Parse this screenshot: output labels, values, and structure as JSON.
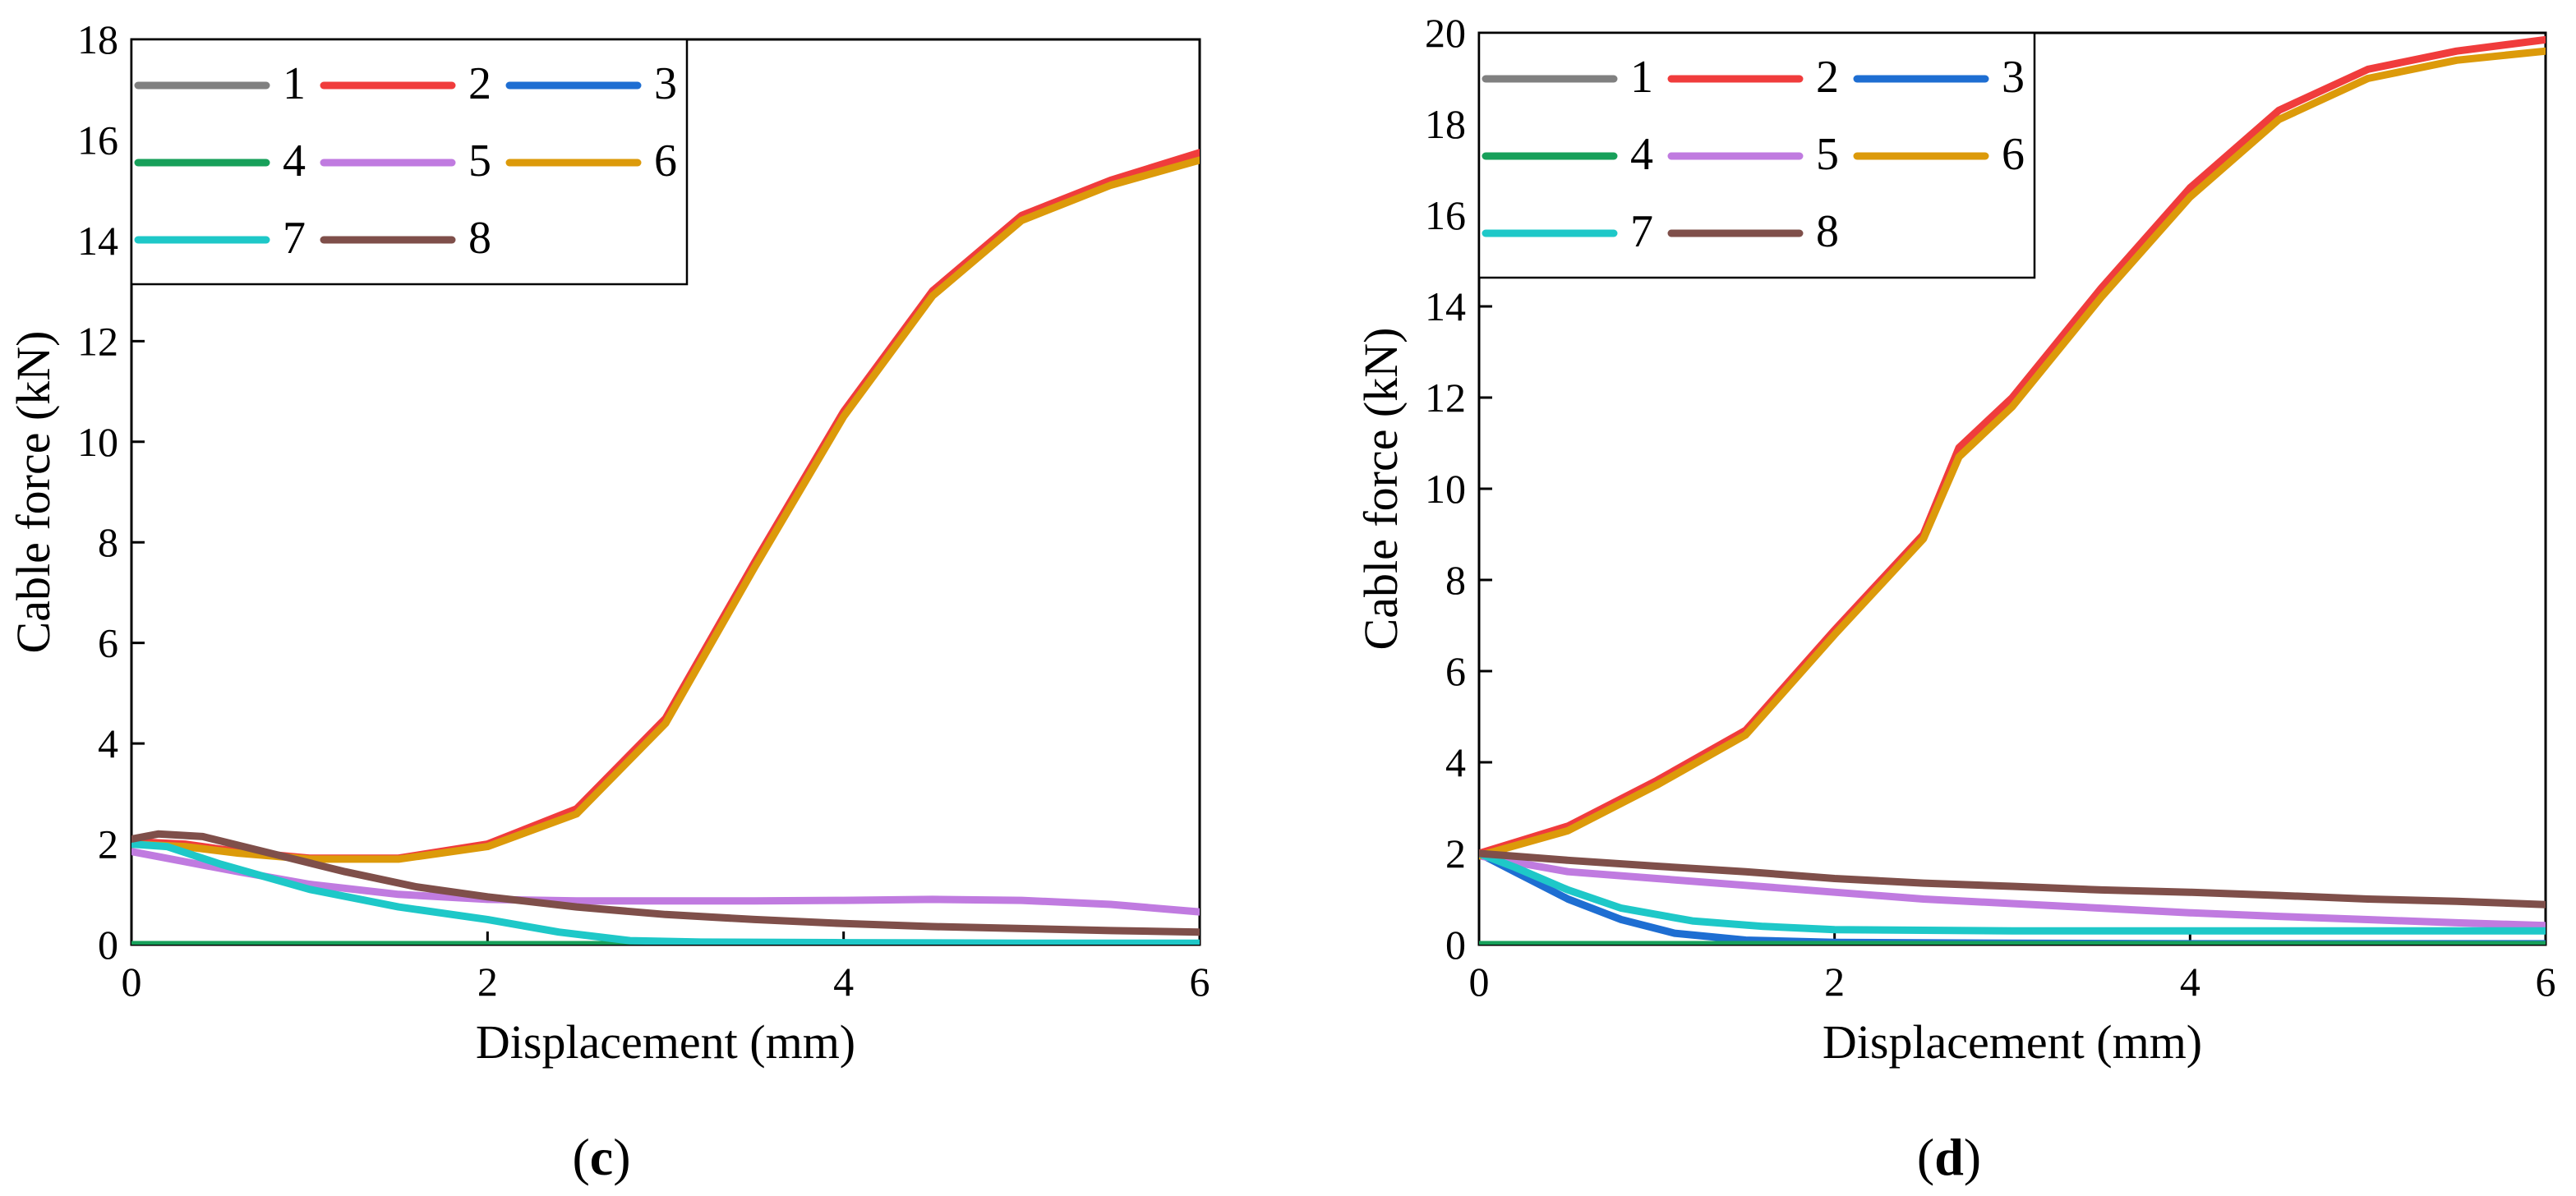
{
  "figure": {
    "panels": [
      {
        "caption_open": "(",
        "caption_letter": "c",
        "caption_close": ")"
      },
      {
        "caption_open": "(",
        "caption_letter": "d",
        "caption_close": ")"
      }
    ]
  },
  "chart_data": [
    {
      "type": "line",
      "panel": "(c)",
      "title": "",
      "xlabel": "Displacement (mm)",
      "ylabel": "Cable force (kN)",
      "xlim": [
        0,
        6
      ],
      "ylim": [
        0,
        18
      ],
      "xticks": [
        0,
        2,
        4,
        6
      ],
      "yticks": [
        0,
        2,
        4,
        6,
        8,
        10,
        12,
        14,
        16,
        18
      ],
      "legend_position": "top-left",
      "series": [
        {
          "name": "1",
          "color": "#808080",
          "x": [
            0,
            6
          ],
          "y": [
            0,
            0
          ]
        },
        {
          "name": "2",
          "color": "#f03c3c",
          "x": [
            0,
            0.3,
            0.6,
            1.0,
            1.5,
            2.0,
            2.5,
            3.0,
            3.5,
            4.0,
            4.5,
            5.0,
            5.5,
            6.0
          ],
          "y": [
            2.05,
            2.0,
            1.85,
            1.72,
            1.72,
            2.0,
            2.7,
            4.5,
            7.6,
            10.6,
            13.0,
            14.5,
            15.2,
            15.75
          ]
        },
        {
          "name": "3",
          "color": "#1e6ed2",
          "x": [
            0,
            6
          ],
          "y": [
            0,
            0
          ]
        },
        {
          "name": "4",
          "color": "#17a05a",
          "x": [
            0,
            6
          ],
          "y": [
            0,
            0
          ]
        },
        {
          "name": "5",
          "color": "#c07be0",
          "x": [
            0,
            0.3,
            0.6,
            1.0,
            1.5,
            2.0,
            2.5,
            3.0,
            3.5,
            4.0,
            4.5,
            5.0,
            5.5,
            6.0
          ],
          "y": [
            1.85,
            1.65,
            1.45,
            1.2,
            1.0,
            0.9,
            0.87,
            0.87,
            0.87,
            0.88,
            0.9,
            0.88,
            0.8,
            0.65
          ]
        },
        {
          "name": "6",
          "color": "#dc9a0a",
          "x": [
            0,
            0.3,
            0.6,
            1.0,
            1.5,
            2.0,
            2.5,
            3.0,
            3.5,
            4.0,
            4.5,
            5.0,
            5.5,
            6.0
          ],
          "y": [
            2.0,
            1.95,
            1.82,
            1.7,
            1.7,
            1.95,
            2.6,
            4.4,
            7.5,
            10.5,
            12.9,
            14.4,
            15.1,
            15.6
          ]
        },
        {
          "name": "7",
          "color": "#1ec8c8",
          "x": [
            0,
            0.2,
            0.5,
            1.0,
            1.5,
            2.0,
            2.4,
            2.8,
            3.2,
            4.0,
            5.0,
            6.0
          ],
          "y": [
            2.0,
            1.95,
            1.6,
            1.1,
            0.75,
            0.5,
            0.25,
            0.08,
            0.05,
            0.04,
            0.03,
            0.03
          ]
        },
        {
          "name": "8",
          "color": "#7f4f4a",
          "x": [
            0,
            0.15,
            0.4,
            0.8,
            1.2,
            1.6,
            2.0,
            2.5,
            3.0,
            3.5,
            4.0,
            4.5,
            5.0,
            5.5,
            6.0
          ],
          "y": [
            2.1,
            2.2,
            2.15,
            1.8,
            1.45,
            1.15,
            0.95,
            0.75,
            0.6,
            0.5,
            0.42,
            0.36,
            0.32,
            0.28,
            0.25
          ]
        }
      ]
    },
    {
      "type": "line",
      "panel": "(d)",
      "title": "",
      "xlabel": "Displacement (mm)",
      "ylabel": "Cable force (kN)",
      "xlim": [
        0,
        6
      ],
      "ylim": [
        0,
        20
      ],
      "xticks": [
        0,
        2,
        4,
        6
      ],
      "yticks": [
        0,
        2,
        4,
        6,
        8,
        10,
        12,
        14,
        16,
        18,
        20
      ],
      "legend_position": "top-left",
      "series": [
        {
          "name": "1",
          "color": "#808080",
          "x": [
            0,
            6
          ],
          "y": [
            0,
            0
          ]
        },
        {
          "name": "2",
          "color": "#f03c3c",
          "x": [
            0,
            0.5,
            1.0,
            1.5,
            2.0,
            2.5,
            2.7,
            3.0,
            3.5,
            4.0,
            4.5,
            5.0,
            5.5,
            6.0
          ],
          "y": [
            2.0,
            2.6,
            3.6,
            4.7,
            6.9,
            9.0,
            10.9,
            12.0,
            14.4,
            16.6,
            18.3,
            19.2,
            19.6,
            19.85
          ]
        },
        {
          "name": "3",
          "color": "#1e6ed2",
          "x": [
            0,
            0.2,
            0.5,
            0.8,
            1.1,
            1.5,
            2.0,
            3.0,
            4.0,
            5.0,
            6.0
          ],
          "y": [
            2.0,
            1.6,
            1.0,
            0.55,
            0.25,
            0.1,
            0.05,
            0.03,
            0.02,
            0.02,
            0.02
          ]
        },
        {
          "name": "4",
          "color": "#17a05a",
          "x": [
            0,
            6
          ],
          "y": [
            0,
            0
          ]
        },
        {
          "name": "5",
          "color": "#c07be0",
          "x": [
            0,
            0.5,
            1.0,
            1.5,
            2.0,
            2.5,
            3.0,
            3.5,
            4.0,
            4.5,
            5.0,
            5.5,
            6.0
          ],
          "y": [
            1.95,
            1.6,
            1.45,
            1.3,
            1.15,
            1.0,
            0.9,
            0.8,
            0.7,
            0.62,
            0.55,
            0.48,
            0.42
          ]
        },
        {
          "name": "6",
          "color": "#dc9a0a",
          "x": [
            0,
            0.5,
            1.0,
            1.5,
            2.0,
            2.5,
            2.7,
            3.0,
            3.5,
            4.0,
            4.5,
            5.0,
            5.5,
            6.0
          ],
          "y": [
            1.95,
            2.5,
            3.5,
            4.6,
            6.8,
            8.9,
            10.7,
            11.8,
            14.2,
            16.4,
            18.1,
            19.0,
            19.4,
            19.6
          ]
        },
        {
          "name": "7",
          "color": "#1ec8c8",
          "x": [
            0,
            0.2,
            0.5,
            0.8,
            1.2,
            1.6,
            2.0,
            3.0,
            4.0,
            5.0,
            6.0
          ],
          "y": [
            2.0,
            1.7,
            1.2,
            0.8,
            0.52,
            0.4,
            0.33,
            0.3,
            0.3,
            0.3,
            0.3
          ]
        },
        {
          "name": "8",
          "color": "#7f4f4a",
          "x": [
            0,
            0.5,
            1.0,
            1.5,
            2.0,
            2.5,
            3.0,
            3.5,
            4.0,
            4.5,
            5.0,
            5.5,
            6.0
          ],
          "y": [
            2.0,
            1.85,
            1.72,
            1.6,
            1.45,
            1.35,
            1.28,
            1.2,
            1.15,
            1.08,
            1.0,
            0.95,
            0.88
          ]
        }
      ]
    }
  ]
}
